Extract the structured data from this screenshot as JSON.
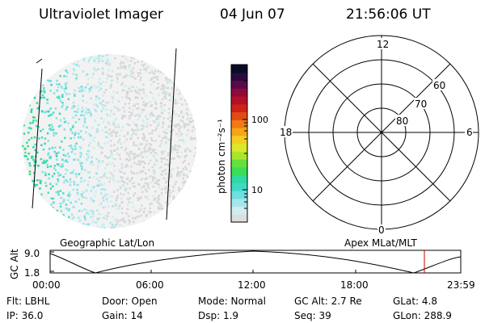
{
  "header": {
    "title": "Ultraviolet Imager",
    "date": "04 Jun 07",
    "time": "21:56:06 UT"
  },
  "colorbar": {
    "unit_label": "photon cm⁻²s⁻¹",
    "tick_labels": [
      "100",
      "10"
    ],
    "colors": [
      "#dddddd",
      "#cfecee",
      "#a6e5eb",
      "#6ee0de",
      "#3fd9c8",
      "#2fd9a0",
      "#3adc5c",
      "#66e03a",
      "#a8e62c",
      "#dde82a",
      "#f1cf1f",
      "#f7a416",
      "#f07b12",
      "#e24a14",
      "#cc2218",
      "#b30f26",
      "#8e0a3a",
      "#5a0a4a",
      "#2a0a3e",
      "#0a0a28"
    ]
  },
  "polar_grid": {
    "mlt_labels": {
      "top": "12",
      "right": "6",
      "bottom": "0",
      "left": "18"
    },
    "lat_labels": [
      "60",
      "70",
      "80"
    ]
  },
  "alt_plot": {
    "left_title": "Geographic Lat/Lon",
    "right_title": "Apex MLat/MLT",
    "y_axis_label": "GC Alt",
    "y_ticks": [
      "9.0",
      "1.8"
    ],
    "x_ticks": [
      "00:00",
      "06:00",
      "12:00",
      "18:00",
      "23:59"
    ],
    "marker_color": "#cc0000"
  },
  "status": {
    "flt": "Flt: LBHL",
    "door": "Door: Open",
    "mode": "Mode: Normal",
    "gc_alt": "GC Alt: 2.7 Re",
    "glat": "GLat:   4.8",
    "ip": "IP: 36.0",
    "gain": "Gain: 14",
    "dsp": "Dsp:    1.9",
    "seq": "Seq: 39",
    "glon": "GLon: 288.9"
  }
}
